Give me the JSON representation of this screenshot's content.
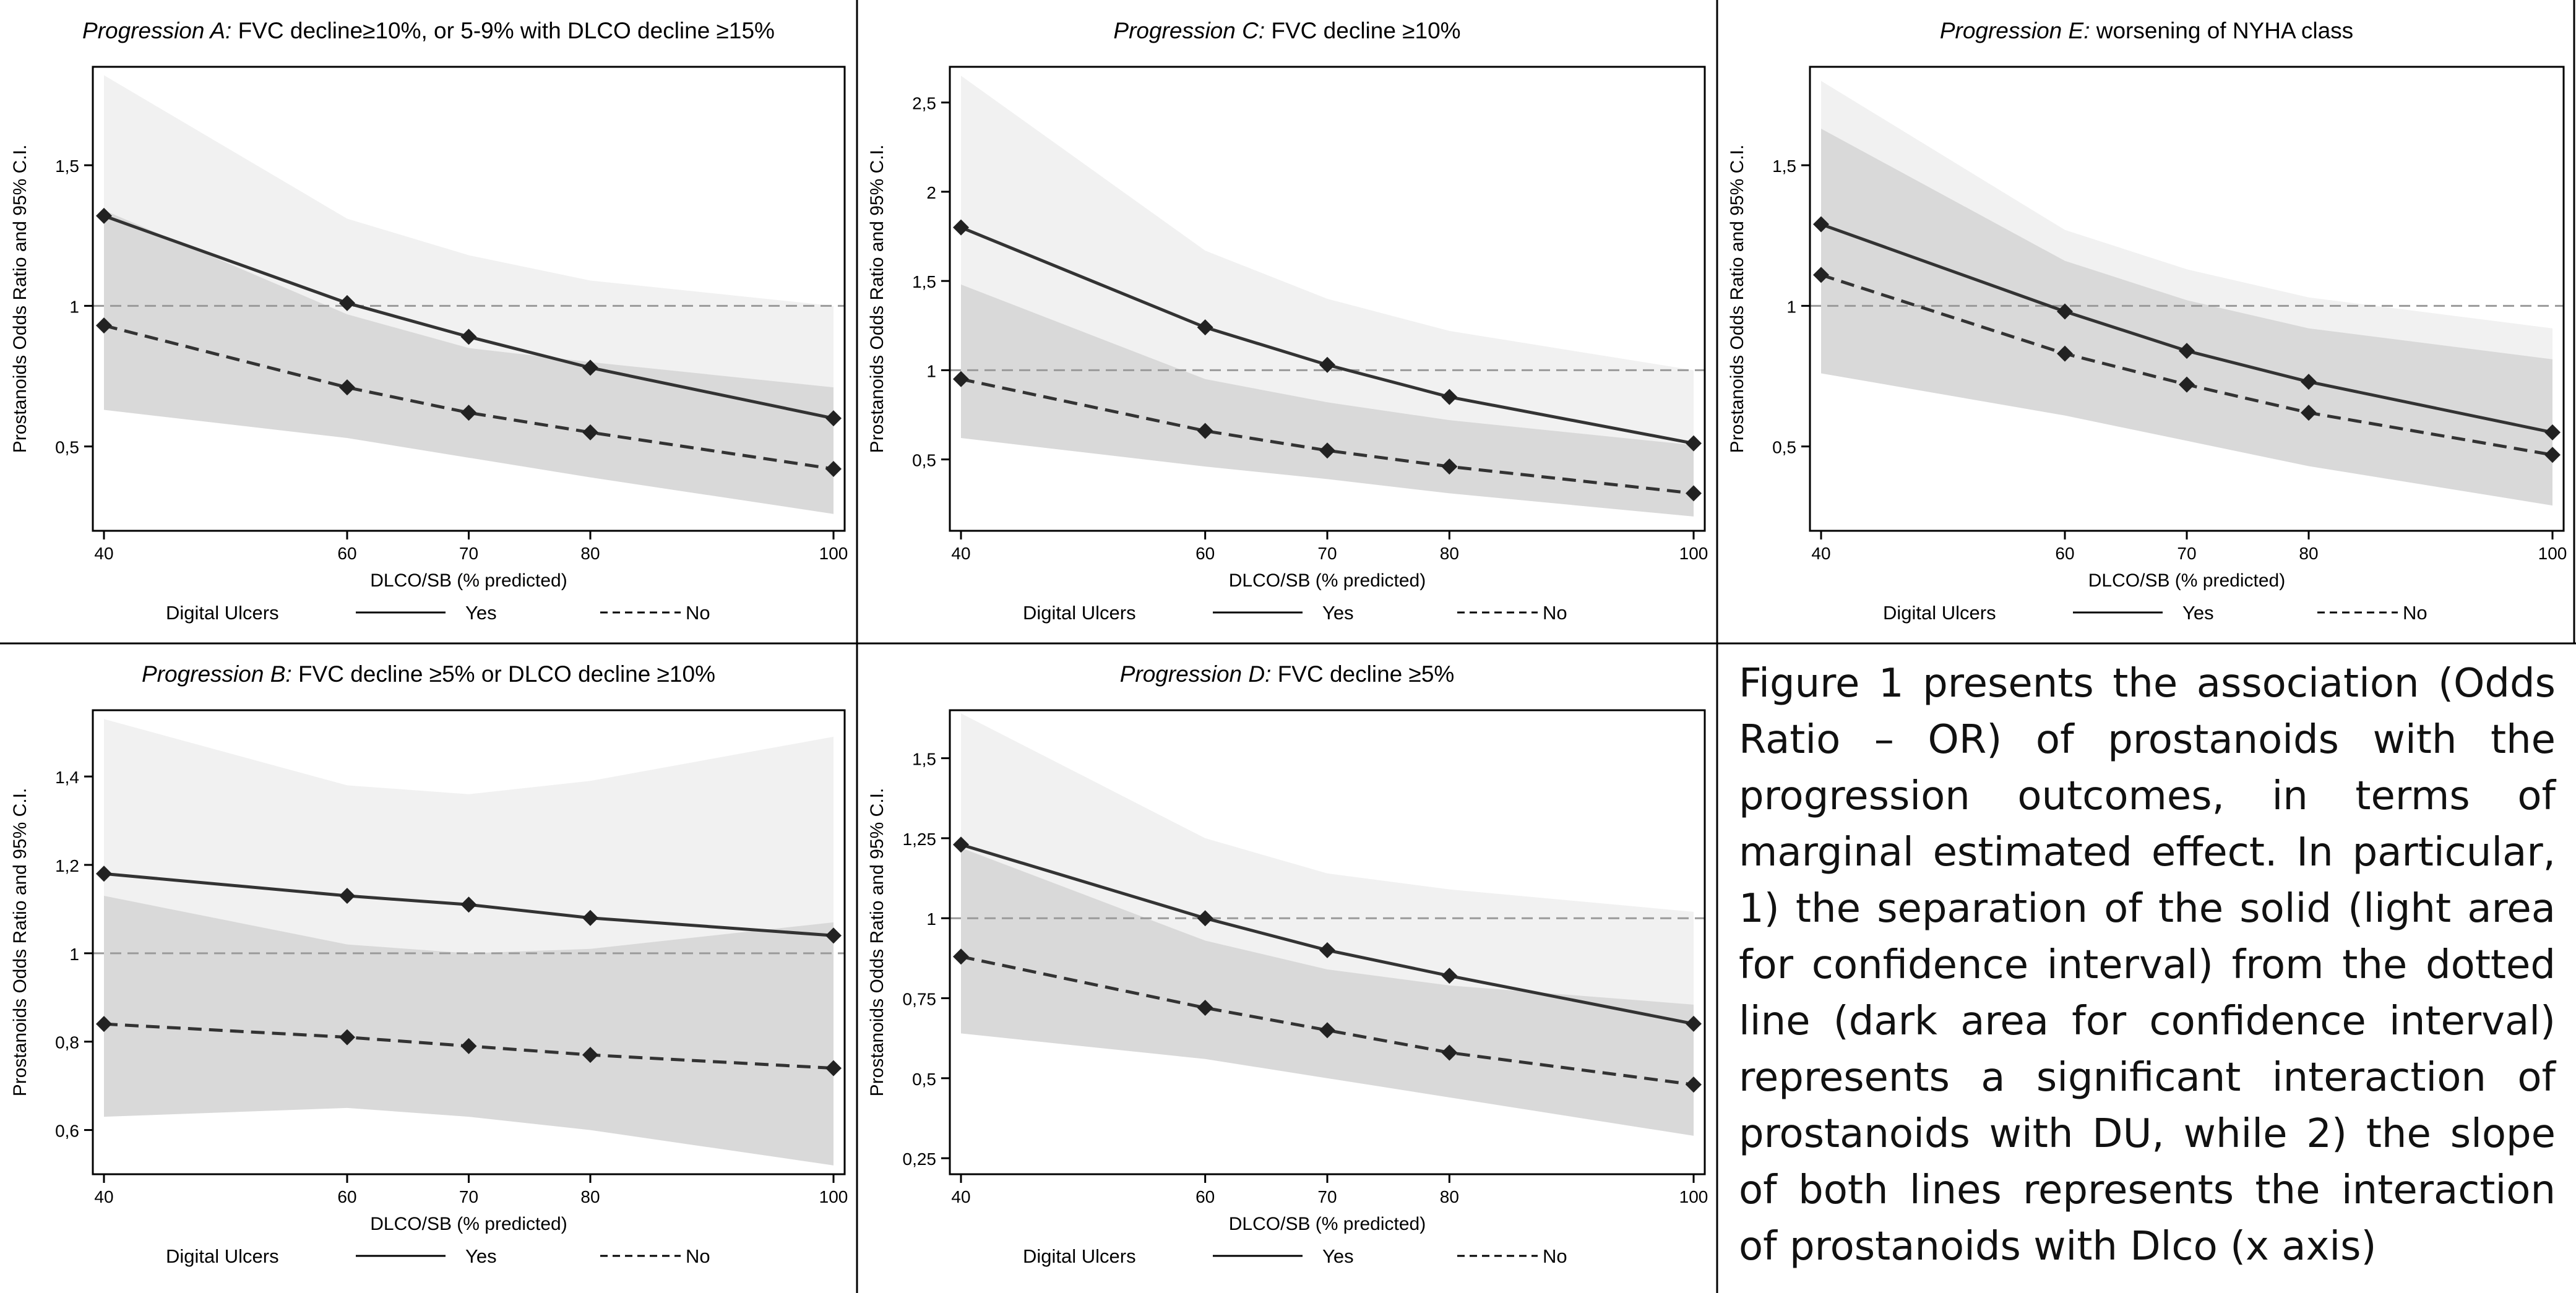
{
  "caption": "Figure 1 presents the association (Odds Ratio – OR) of prostanoids with the progression outcomes, in terms of marginal estimated effect. In particular, 1) the separation of the solid (light area for confidence interval) from the dotted line (dark area for confidence interval) represents a significant interaction of prostanoids with DU, while 2) the slope of both lines represents the interaction of prostanoids with Dlco (x axis)",
  "legend": {
    "title": "Digital Ulcers",
    "yes": "Yes",
    "no": "No"
  },
  "chart_data": [
    {
      "type": "line",
      "title_prefix": "Progression A:",
      "title_rest": " FVC decline≥10%, or 5-9% with DLCO decline ≥15%",
      "xlabel": "DLCO/SB (% predicted)",
      "ylabel": "Prostanoids Odds Ratio and 95% C.I.",
      "x": [
        40,
        60,
        70,
        80,
        100
      ],
      "x_ticks": [
        "40",
        "60",
        "70",
        "80",
        "100"
      ],
      "xlim": [
        40,
        100
      ],
      "ylim": [
        0.2,
        1.85
      ],
      "y_ticks": [
        0.5,
        1,
        1.5
      ],
      "y_tick_labels": [
        "0,5",
        "1",
        "1,5"
      ],
      "reference_line": 1,
      "series": [
        {
          "name": "Yes",
          "style": "solid",
          "values": [
            1.32,
            1.01,
            0.89,
            0.78,
            0.6
          ],
          "ci_lower": [
            0.97,
            0.77,
            0.68,
            0.59,
            0.4
          ],
          "ci_upper": [
            1.82,
            1.31,
            1.18,
            1.09,
            1.0
          ]
        },
        {
          "name": "No",
          "style": "dashed",
          "values": [
            0.93,
            0.71,
            0.62,
            0.55,
            0.42
          ],
          "ci_lower": [
            0.63,
            0.53,
            0.46,
            0.39,
            0.26
          ],
          "ci_upper": [
            1.34,
            0.97,
            0.85,
            0.8,
            0.71
          ]
        }
      ]
    },
    {
      "type": "line",
      "title_prefix": "Progression C:",
      "title_rest": " FVC decline ≥10%",
      "xlabel": "DLCO/SB (% predicted)",
      "ylabel": "Prostanoids Odds Ratio and 95% C.I.",
      "x": [
        40,
        60,
        70,
        80,
        100
      ],
      "x_ticks": [
        "40",
        "60",
        "70",
        "80",
        "100"
      ],
      "xlim": [
        40,
        100
      ],
      "ylim": [
        0.1,
        2.7
      ],
      "y_ticks": [
        0.5,
        1,
        1.5,
        2,
        2.5
      ],
      "y_tick_labels": [
        "0,5",
        "1",
        "1,5",
        "2",
        "2,5"
      ],
      "reference_line": 1,
      "series": [
        {
          "name": "Yes",
          "style": "solid",
          "values": [
            1.8,
            1.24,
            1.03,
            0.85,
            0.59
          ],
          "ci_lower": [
            1.22,
            0.92,
            0.78,
            0.64,
            0.36
          ],
          "ci_upper": [
            2.65,
            1.67,
            1.4,
            1.22,
            1.0
          ]
        },
        {
          "name": "No",
          "style": "dashed",
          "values": [
            0.95,
            0.66,
            0.55,
            0.46,
            0.31
          ],
          "ci_lower": [
            0.62,
            0.46,
            0.39,
            0.31,
            0.18
          ],
          "ci_upper": [
            1.48,
            0.95,
            0.82,
            0.72,
            0.58
          ]
        }
      ]
    },
    {
      "type": "line",
      "title_prefix": "Progression E:",
      "title_rest": " worsening of NYHA class",
      "xlabel": "DLCO/SB (% predicted)",
      "ylabel": "Prostanoids Odds Ratio and 95% C.I.",
      "x": [
        40,
        60,
        70,
        80,
        100
      ],
      "x_ticks": [
        "40",
        "60",
        "70",
        "80",
        "100"
      ],
      "xlim": [
        40,
        100
      ],
      "ylim": [
        0.2,
        1.85
      ],
      "y_ticks": [
        0.5,
        1,
        1.5
      ],
      "y_tick_labels": [
        "0,5",
        "1",
        "1,5"
      ],
      "reference_line": 1,
      "series": [
        {
          "name": "Yes",
          "style": "solid",
          "values": [
            1.29,
            0.98,
            0.84,
            0.73,
            0.55
          ],
          "ci_lower": [
            0.93,
            0.74,
            0.64,
            0.56,
            0.36
          ],
          "ci_upper": [
            1.8,
            1.27,
            1.13,
            1.03,
            0.92
          ]
        },
        {
          "name": "No",
          "style": "dashed",
          "values": [
            1.11,
            0.83,
            0.72,
            0.62,
            0.47
          ],
          "ci_lower": [
            0.76,
            0.61,
            0.52,
            0.43,
            0.29
          ],
          "ci_upper": [
            1.63,
            1.16,
            1.02,
            0.92,
            0.81
          ]
        }
      ]
    },
    {
      "type": "line",
      "title_prefix": "Progression B:",
      "title_rest": " FVC decline ≥5% or DLCO decline ≥10%",
      "xlabel": "DLCO/SB (% predicted)",
      "ylabel": "Prostanoids Odds Ratio and 95% C.I.",
      "x": [
        40,
        60,
        70,
        80,
        100
      ],
      "x_ticks": [
        "40",
        "60",
        "70",
        "80",
        "100"
      ],
      "xlim": [
        40,
        100
      ],
      "ylim": [
        0.5,
        1.55
      ],
      "y_ticks": [
        0.6,
        0.8,
        1,
        1.2,
        1.4
      ],
      "y_tick_labels": [
        "0,6",
        "0,8",
        "1",
        "1,2",
        "1,4"
      ],
      "reference_line": 1,
      "series": [
        {
          "name": "Yes",
          "style": "solid",
          "values": [
            1.18,
            1.13,
            1.11,
            1.08,
            1.04
          ],
          "ci_lower": [
            0.91,
            0.93,
            0.9,
            0.85,
            0.72
          ],
          "ci_upper": [
            1.53,
            1.38,
            1.36,
            1.39,
            1.49
          ]
        },
        {
          "name": "No",
          "style": "dashed",
          "values": [
            0.84,
            0.81,
            0.79,
            0.77,
            0.74
          ],
          "ci_lower": [
            0.63,
            0.65,
            0.63,
            0.6,
            0.52
          ],
          "ci_upper": [
            1.13,
            1.02,
            1.0,
            1.01,
            1.07
          ]
        }
      ]
    },
    {
      "type": "line",
      "title_prefix": "Progression D:",
      "title_rest": " FVC decline ≥5%",
      "xlabel": "DLCO/SB (% predicted)",
      "ylabel": "Prostanoids Odds Ratio and 95% C.I.",
      "x": [
        40,
        60,
        70,
        80,
        100
      ],
      "x_ticks": [
        "40",
        "60",
        "70",
        "80",
        "100"
      ],
      "xlim": [
        40,
        100
      ],
      "ylim": [
        0.2,
        1.65
      ],
      "y_ticks": [
        0.25,
        0.5,
        0.75,
        1,
        1.25,
        1.5
      ],
      "y_tick_labels": [
        "0,25",
        "0,5",
        "0,75",
        "1",
        "1,25",
        "1,5"
      ],
      "reference_line": 1,
      "series": [
        {
          "name": "Yes",
          "style": "solid",
          "values": [
            1.23,
            1.0,
            0.9,
            0.82,
            0.67
          ],
          "ci_lower": [
            0.92,
            0.8,
            0.72,
            0.62,
            0.44
          ],
          "ci_upper": [
            1.64,
            1.25,
            1.14,
            1.09,
            1.02
          ]
        },
        {
          "name": "No",
          "style": "dashed",
          "values": [
            0.88,
            0.72,
            0.65,
            0.58,
            0.48
          ],
          "ci_lower": [
            0.64,
            0.56,
            0.5,
            0.44,
            0.32
          ],
          "ci_upper": [
            1.22,
            0.93,
            0.84,
            0.79,
            0.73
          ]
        }
      ]
    }
  ],
  "colors": {
    "ci_light": "#f1f1f1",
    "ci_dark": "#d9d9d9",
    "ci_overlap": "#d2d2d2",
    "line": "#333333",
    "reference": "#9a9a9a",
    "border": "#000000"
  }
}
